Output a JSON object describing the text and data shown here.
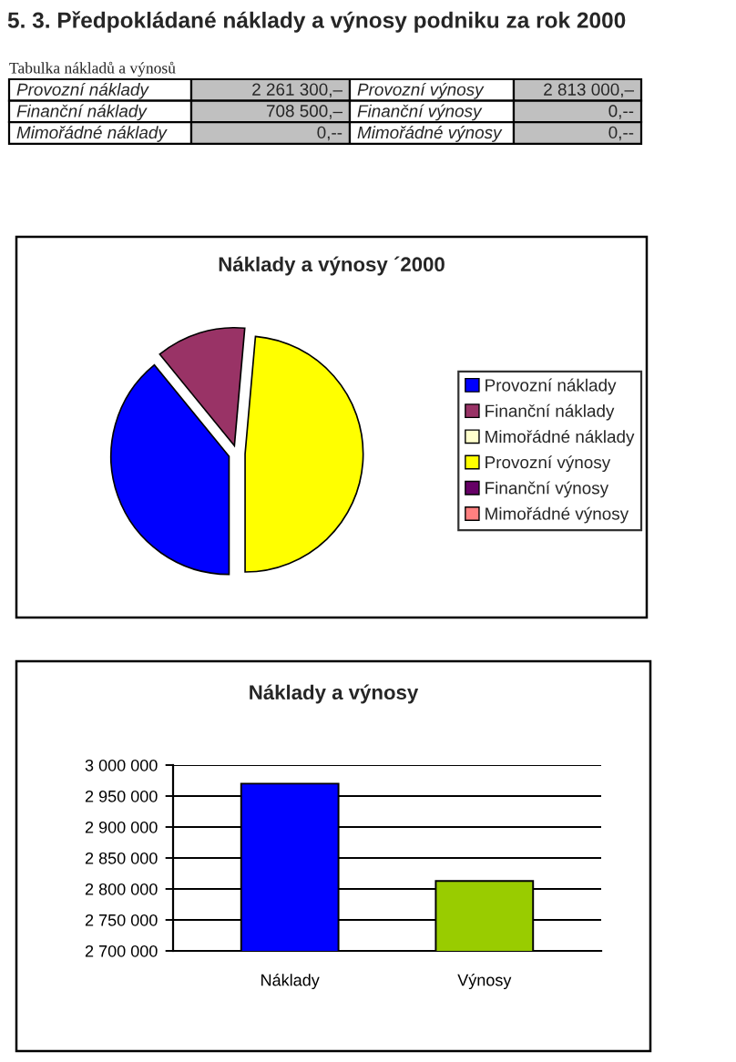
{
  "chart_data": [
    {
      "type": "other",
      "title": "5. 3. Předpokládané náklady a výnosy podniku za rok 2000",
      "subtitle": "Tabulka nákladů a výnosů",
      "annotations": [
        "Provozní náklady",
        "2 261 300,–",
        "Provozní výnosy",
        "2 813 000,–",
        "Finanční náklady",
        "708 500,–",
        "Finanční výnosy",
        "0,--",
        "Mimořádné náklady",
        "0,--",
        "Mimořádné výnosy",
        "0,--"
      ]
    },
    {
      "type": "pie",
      "title": "Náklady a výnosy ´2000",
      "categories": [
        "Provozní náklady",
        "Finanční náklady",
        "Mimořádné náklady",
        "Provozní výnosy",
        "Finanční výnosy",
        "Mimořádné výnosy"
      ],
      "values": [
        39.1,
        12.3,
        0,
        48.6,
        0,
        0
      ],
      "colors": [
        "#0000ff",
        "#993366",
        "#ffffcc",
        "#ffff00",
        "#660066",
        "#ff8080"
      ],
      "legend": "right"
    },
    {
      "type": "bar",
      "title": "Náklady a výnosy",
      "categories": [
        "Náklady",
        "Výnosy"
      ],
      "values": [
        2970000,
        2813000
      ],
      "colors": [
        "#0000ff",
        "#99cc00"
      ],
      "ylim": [
        2700000,
        3000000
      ],
      "yticks": [
        {
          "value": 2700000,
          "label": "2 700 000"
        },
        {
          "value": 2750000,
          "label": "2 750 000"
        },
        {
          "value": 2800000,
          "label": "2 800 000"
        },
        {
          "value": 2850000,
          "label": "2 850 000"
        },
        {
          "value": 2900000,
          "label": "2 900 000"
        },
        {
          "value": 2950000,
          "label": "2 950 000"
        },
        {
          "value": 3000000,
          "label": "3 000 000"
        }
      ],
      "grid": "y"
    }
  ]
}
